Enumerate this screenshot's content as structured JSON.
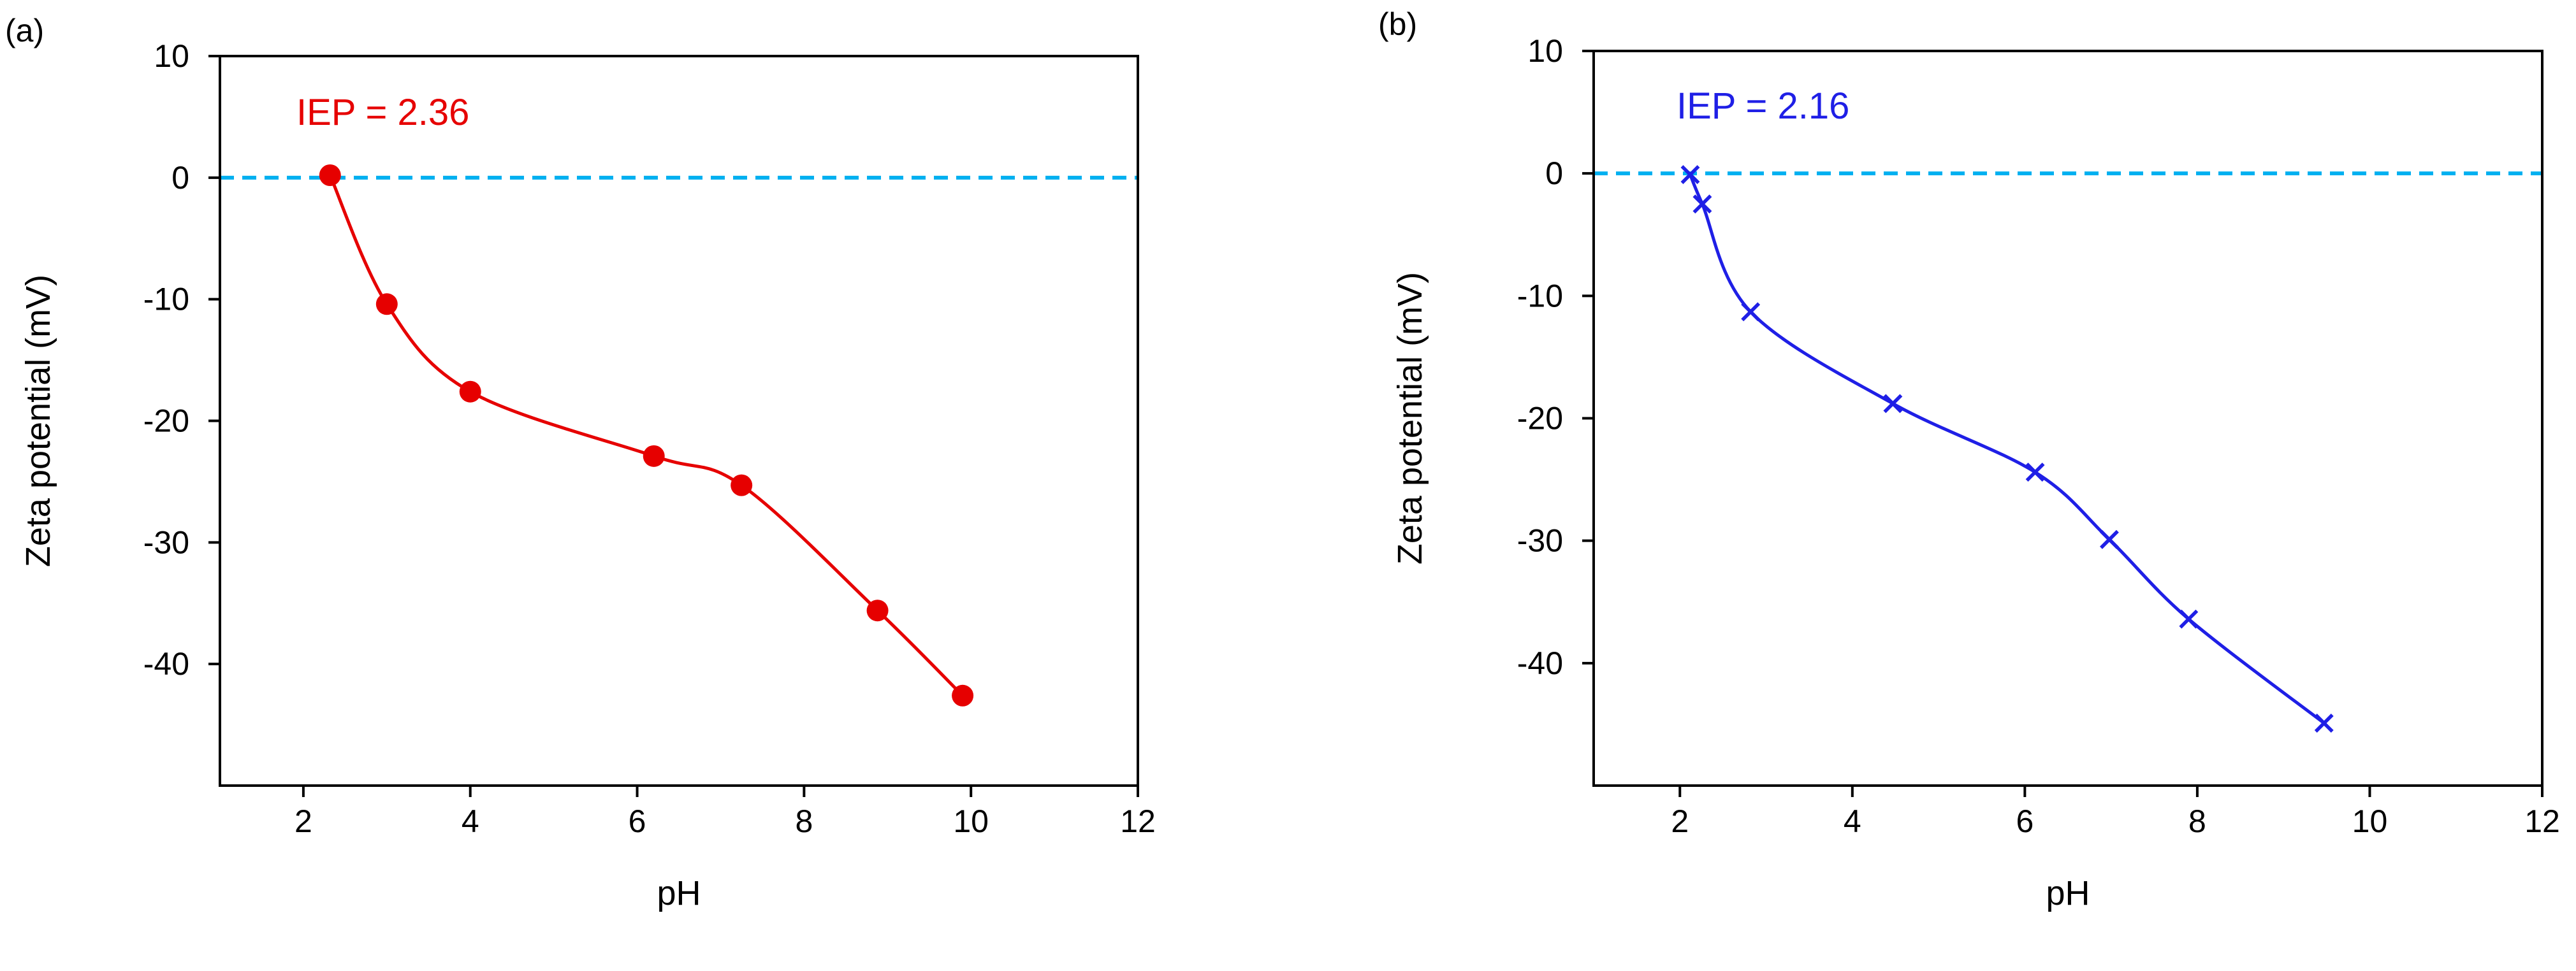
{
  "chart_data": [
    {
      "id": "a",
      "panel_label": "(a)",
      "type": "scatter",
      "title": "",
      "xlabel": "pH",
      "ylabel": "Zeta potential (mV)",
      "xlim": [
        1,
        12
      ],
      "ylim": [
        -50,
        10
      ],
      "xticks": [
        2,
        4,
        6,
        8,
        10,
        12
      ],
      "yticks": [
        10,
        0,
        -10,
        -20,
        -30,
        -40
      ],
      "grid": false,
      "reference_line": {
        "y": 0,
        "style": "dashed",
        "color": "#00b0f0"
      },
      "annotation": "IEP = 2.36",
      "series": [
        {
          "name": "zeta potential",
          "marker": "circle",
          "color": "#e60000",
          "x": [
            2.32,
            3.0,
            4.0,
            6.2,
            7.25,
            8.88,
            9.9
          ],
          "y": [
            0.2,
            -10.4,
            -17.6,
            -22.9,
            -25.3,
            -35.6,
            -42.6
          ]
        }
      ]
    },
    {
      "id": "b",
      "panel_label": "(b)",
      "type": "scatter",
      "title": "",
      "xlabel": "pH",
      "ylabel": "Zeta potential (mV)",
      "xlim": [
        1,
        12
      ],
      "ylim": [
        -50,
        10
      ],
      "xticks": [
        2,
        4,
        6,
        8,
        10,
        12
      ],
      "yticks": [
        10,
        0,
        -10,
        -20,
        -30,
        -40
      ],
      "grid": false,
      "reference_line": {
        "y": 0,
        "style": "dashed",
        "color": "#00b0f0"
      },
      "annotation": "IEP = 2.16",
      "series": [
        {
          "name": "zeta potential",
          "marker": "x",
          "color": "#1f1fe6",
          "x": [
            2.12,
            2.26,
            2.82,
            4.47,
            6.12,
            6.98,
            7.9,
            9.47
          ],
          "y": [
            -0.1,
            -2.5,
            -11.3,
            -18.8,
            -24.4,
            -29.9,
            -36.4,
            -44.9
          ]
        }
      ]
    }
  ]
}
